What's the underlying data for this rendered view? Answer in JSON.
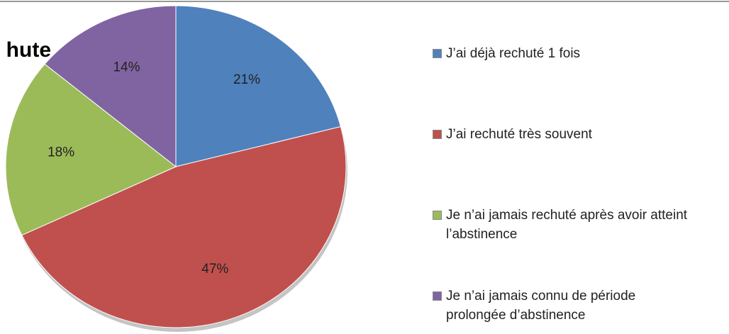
{
  "chart_data": {
    "type": "pie",
    "title": "hute",
    "categories": [
      "J’ai déjà rechuté 1 fois",
      "J’ai rechuté très souvent",
      "Je n’ai jamais rechuté après avoir atteint l’abstinence",
      "Je n’ai jamais connu de période prolongée d’abstinence"
    ],
    "values": [
      21,
      47,
      18,
      14
    ],
    "value_labels": [
      "21%",
      "47%",
      "18%",
      "14%"
    ],
    "colors": [
      "#4f81bd",
      "#c0504d",
      "#9bbb59",
      "#8064a2"
    ],
    "legend": "right"
  }
}
